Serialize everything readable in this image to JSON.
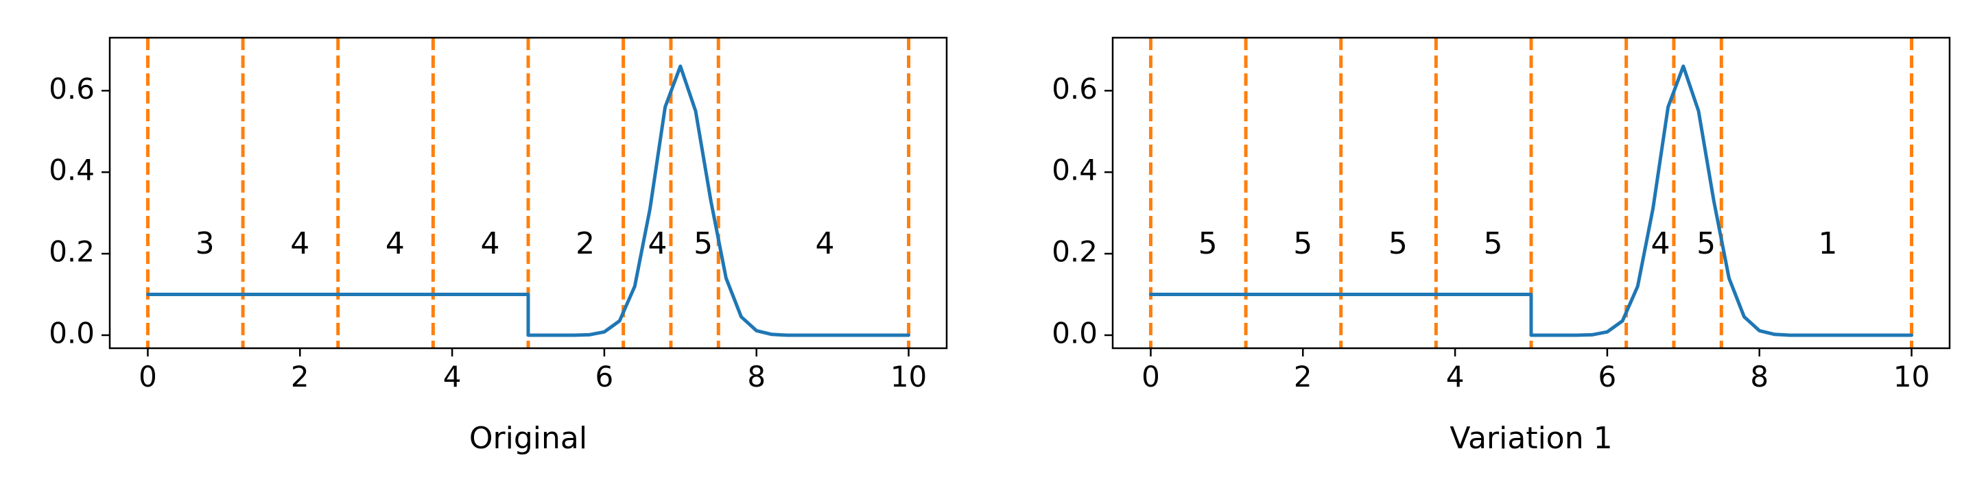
{
  "chart_data": [
    {
      "type": "line",
      "xlabel": "Original",
      "xlim": [
        -0.5,
        10.5
      ],
      "ylim": [
        -0.032,
        0.73
      ],
      "xticks": [
        0,
        2,
        4,
        6,
        8,
        10
      ],
      "xtick_labels": [
        "0",
        "2",
        "4",
        "6",
        "8",
        "10"
      ],
      "yticks": [
        0.0,
        0.2,
        0.4,
        0.6
      ],
      "ytick_labels": [
        "0.0",
        "0.2",
        "0.4",
        "0.6"
      ],
      "grid": false,
      "series": [
        {
          "color": "#1f77b4",
          "x": [
            0,
            5,
            5,
            5.6,
            5.8,
            6.0,
            6.2,
            6.4,
            6.6,
            6.8,
            7.0,
            7.2,
            7.4,
            7.6,
            7.8,
            8.0,
            8.2,
            8.4,
            10
          ],
          "y": [
            0.1,
            0.1,
            0.0,
            0.0,
            0.001,
            0.008,
            0.035,
            0.12,
            0.31,
            0.56,
            0.66,
            0.55,
            0.33,
            0.14,
            0.045,
            0.011,
            0.002,
            0.0,
            0.0
          ]
        }
      ],
      "vlines": {
        "color": "#ff7f0e",
        "style": "dashed",
        "x": [
          0,
          1.25,
          2.5,
          3.75,
          5.0,
          6.25,
          6.875,
          7.5,
          10.0
        ]
      },
      "annotations": [
        {
          "x": 0.75,
          "y": 0.22,
          "text": "3"
        },
        {
          "x": 2.0,
          "y": 0.22,
          "text": "4"
        },
        {
          "x": 3.25,
          "y": 0.22,
          "text": "4"
        },
        {
          "x": 4.5,
          "y": 0.22,
          "text": "4"
        },
        {
          "x": 5.75,
          "y": 0.22,
          "text": "2"
        },
        {
          "x": 6.7,
          "y": 0.22,
          "text": "4"
        },
        {
          "x": 7.3,
          "y": 0.22,
          "text": "5"
        },
        {
          "x": 8.9,
          "y": 0.22,
          "text": "4"
        }
      ]
    },
    {
      "type": "line",
      "xlabel": "Variation 1",
      "xlim": [
        -0.5,
        10.5
      ],
      "ylim": [
        -0.032,
        0.73
      ],
      "xticks": [
        0,
        2,
        4,
        6,
        8,
        10
      ],
      "xtick_labels": [
        "0",
        "2",
        "4",
        "6",
        "8",
        "10"
      ],
      "yticks": [
        0.0,
        0.2,
        0.4,
        0.6
      ],
      "ytick_labels": [
        "0.0",
        "0.2",
        "0.4",
        "0.6"
      ],
      "grid": false,
      "series": [
        {
          "color": "#1f77b4",
          "x": [
            0,
            5,
            5,
            5.6,
            5.8,
            6.0,
            6.2,
            6.4,
            6.6,
            6.8,
            7.0,
            7.2,
            7.4,
            7.6,
            7.8,
            8.0,
            8.2,
            8.4,
            10
          ],
          "y": [
            0.1,
            0.1,
            0.0,
            0.0,
            0.001,
            0.008,
            0.035,
            0.12,
            0.31,
            0.56,
            0.66,
            0.55,
            0.33,
            0.14,
            0.045,
            0.011,
            0.002,
            0.0,
            0.0
          ]
        }
      ],
      "vlines": {
        "color": "#ff7f0e",
        "style": "dashed",
        "x": [
          0,
          1.25,
          2.5,
          3.75,
          5.0,
          6.25,
          6.875,
          7.5,
          10.0
        ]
      },
      "annotations": [
        {
          "x": 0.75,
          "y": 0.22,
          "text": "5"
        },
        {
          "x": 2.0,
          "y": 0.22,
          "text": "5"
        },
        {
          "x": 3.25,
          "y": 0.22,
          "text": "5"
        },
        {
          "x": 4.5,
          "y": 0.22,
          "text": "5"
        },
        {
          "x": 6.7,
          "y": 0.22,
          "text": "4"
        },
        {
          "x": 7.3,
          "y": 0.22,
          "text": "5"
        },
        {
          "x": 8.9,
          "y": 0.22,
          "text": "1"
        }
      ]
    }
  ]
}
